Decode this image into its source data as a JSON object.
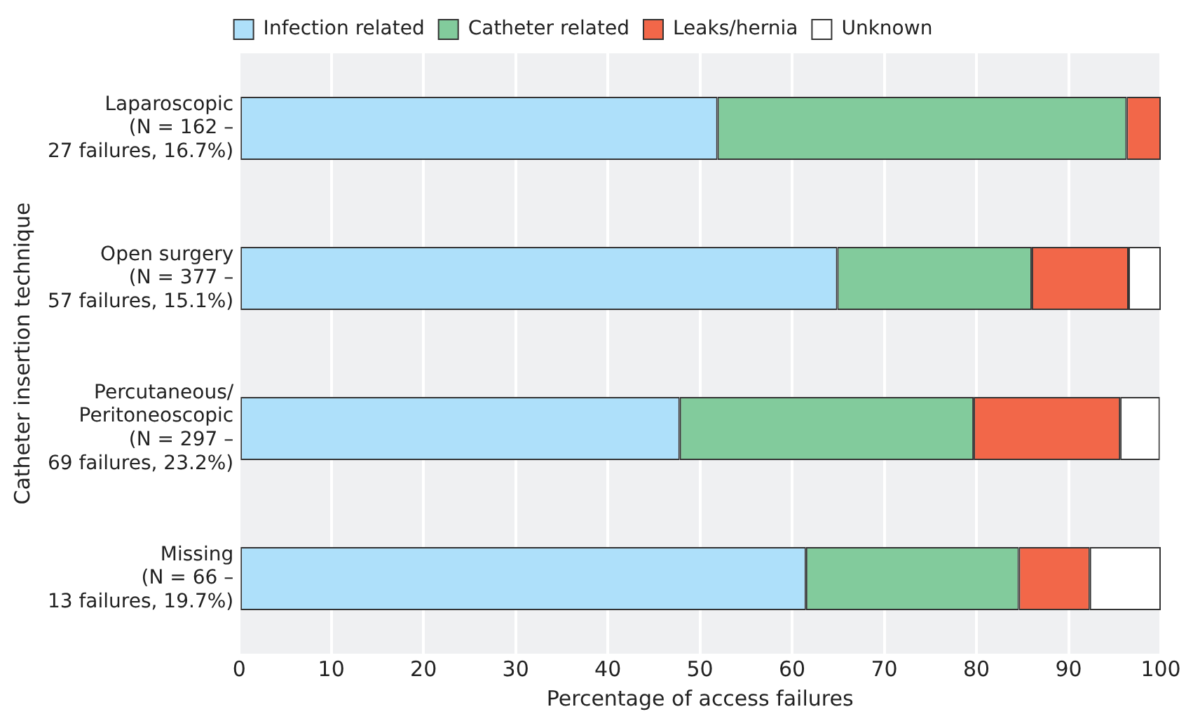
{
  "chart_data": {
    "type": "bar",
    "orientation": "horizontal",
    "stacked": true,
    "xlabel": "Percentage of access failures",
    "ylabel": "Catheter insertion technique",
    "categories": [
      "Laparoscopic\n(N = 162 –\n27 failures, 16.7%)",
      "Open surgery\n(N = 377 –\n57 failures, 15.1%)",
      "Percutaneous/\nPeritoneoscopic\n(N = 297 –\n69 failures, 23.2%)",
      "Missing\n(N = 66 –\n13 failures, 19.7%)"
    ],
    "series": [
      {
        "name": "Infection related",
        "color": "#aee0fa",
        "values": [
          51.9,
          64.9,
          47.8,
          61.5
        ]
      },
      {
        "name": "Catheter related",
        "color": "#82cb9c",
        "values": [
          44.4,
          21.1,
          31.9,
          23.1
        ]
      },
      {
        "name": "Leaks/hernia",
        "color": "#f26749",
        "values": [
          3.7,
          10.5,
          15.9,
          7.7
        ]
      },
      {
        "name": "Unknown",
        "color": "#ffffff",
        "values": [
          0,
          3.5,
          4.3,
          7.7
        ]
      }
    ],
    "xlim": [
      0,
      100
    ],
    "xticks": [
      0,
      10,
      20,
      30,
      40,
      50,
      60,
      70,
      80,
      90,
      100
    ],
    "grid": "x",
    "legend": "top"
  }
}
